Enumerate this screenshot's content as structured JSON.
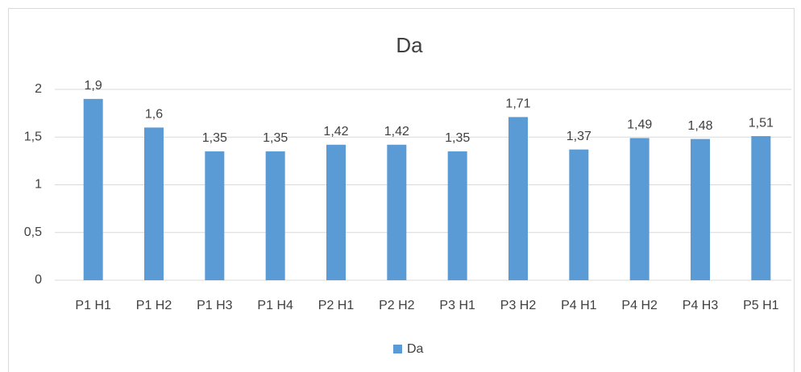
{
  "chart_data": {
    "type": "bar",
    "title": "Da",
    "categories": [
      "P1 H1",
      "P1 H2",
      "P1 H3",
      "P1 H4",
      "P2 H1",
      "P2 H2",
      "P3 H1",
      "P3 H2",
      "P4 H1",
      "P4 H2",
      "P4 H3",
      "P5 H1"
    ],
    "series": [
      {
        "name": "Da",
        "color": "#5b9bd5",
        "values": [
          1.9,
          1.6,
          1.35,
          1.35,
          1.42,
          1.42,
          1.35,
          1.71,
          1.37,
          1.49,
          1.48,
          1.51
        ],
        "value_labels": [
          "1,9",
          "1,6",
          "1,35",
          "1,35",
          "1,42",
          "1,42",
          "1,35",
          "1,71",
          "1,37",
          "1,49",
          "1,48",
          "1,51"
        ]
      }
    ],
    "ylim": [
      0,
      2
    ],
    "yticks": [
      0,
      {
        "value": 0.5,
        "label": "0,5"
      },
      1,
      {
        "value": 1.5,
        "label": "1,5"
      },
      2
    ],
    "grid": true,
    "legend": "bottom"
  }
}
